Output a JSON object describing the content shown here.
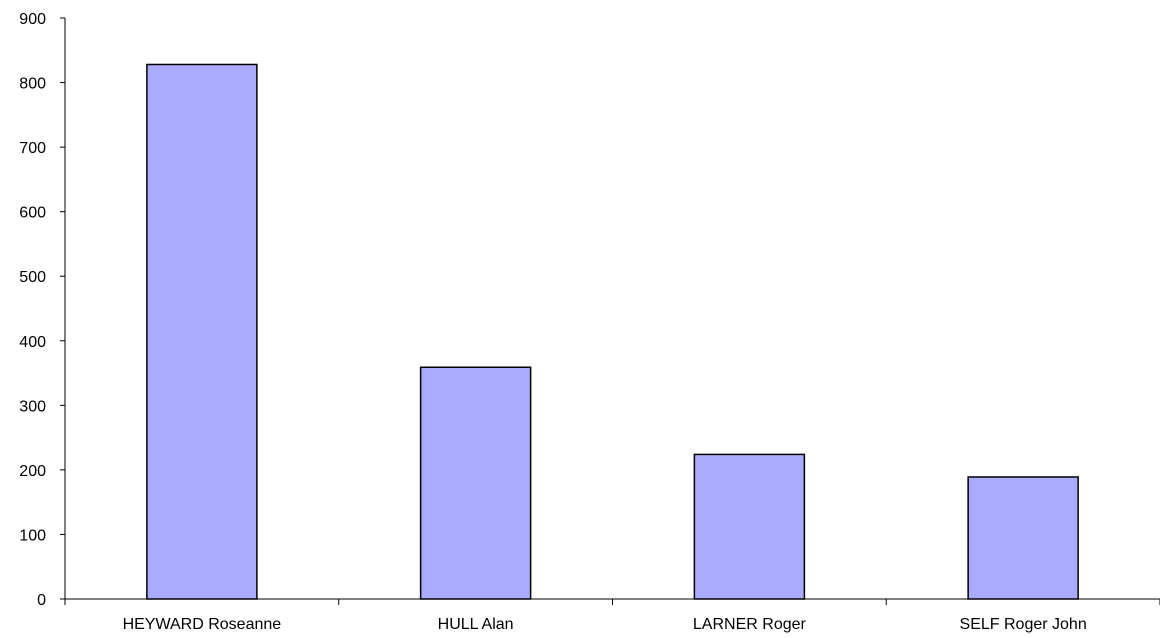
{
  "chart_data": {
    "type": "bar",
    "categories": [
      "HEYWARD Roseanne",
      "HULL Alan",
      "LARNER Roger",
      "SELF Roger John"
    ],
    "values": [
      828,
      359,
      224,
      189
    ],
    "ylim": [
      0,
      900
    ],
    "yticks": [
      "0",
      "100",
      "200",
      "300",
      "400",
      "500",
      "600",
      "700",
      "800",
      "900"
    ],
    "grid": false,
    "legend": "none",
    "bar_color": "#aaaaff",
    "bar_edge_color": "#000000"
  }
}
